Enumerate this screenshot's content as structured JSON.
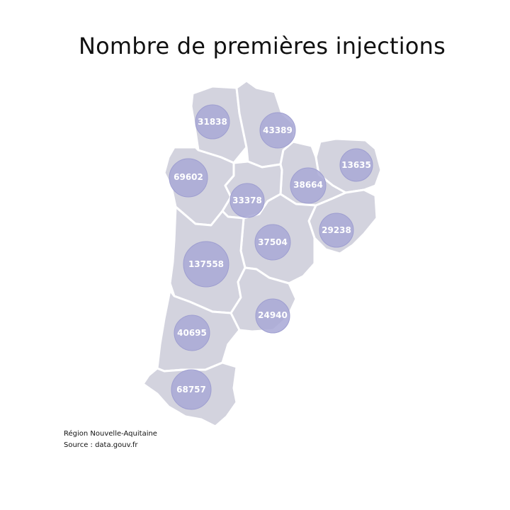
{
  "title": "Nombre de premières injections",
  "caption": {
    "line1": "Région Nouvelle-Aquitaine",
    "line2": "Source : data.gouv.fr"
  },
  "colors": {
    "department_fill": "#d3d3de",
    "border": "#ffffff",
    "bubble": "#a8a8d6",
    "label": "#ffffff"
  },
  "bubbles": [
    {
      "value": 31838,
      "label": "31838"
    },
    {
      "value": 43389,
      "label": "43389"
    },
    {
      "value": 69602,
      "label": "69602"
    },
    {
      "value": 13635,
      "label": "13635"
    },
    {
      "value": 38664,
      "label": "38664"
    },
    {
      "value": 33378,
      "label": "33378"
    },
    {
      "value": 29238,
      "label": "29238"
    },
    {
      "value": 37504,
      "label": "37504"
    },
    {
      "value": 137558,
      "label": "137558"
    },
    {
      "value": 24940,
      "label": "24940"
    },
    {
      "value": 40695,
      "label": "40695"
    },
    {
      "value": 68757,
      "label": "68757"
    }
  ]
}
